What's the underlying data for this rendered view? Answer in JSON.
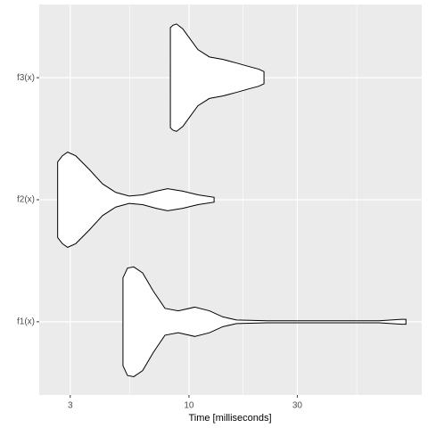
{
  "chart_data": {
    "type": "violin",
    "x_label": "Time [milliseconds]",
    "categories": [
      "f1(x)",
      "f2(x)",
      "f3(x)"
    ],
    "series": [
      {
        "name": "f1(x)",
        "x": [
          5.12,
          5.36,
          5.71,
          6.25,
          6.97,
          7.84,
          8.97,
          10.6,
          12.3,
          14.1,
          16.2,
          22.2,
          54.9,
          68.8,
          86.3,
          90.3
        ],
        "density": [
          0.36,
          0.44,
          0.45,
          0.4,
          0.25,
          0.11,
          0.09,
          0.12,
          0.09,
          0.04,
          0.015,
          0.008,
          0.008,
          0.008,
          0.02,
          0.02
        ]
      },
      {
        "name": "f2(x)",
        "x": [
          2.64,
          2.77,
          2.92,
          3.17,
          3.63,
          4.16,
          4.76,
          5.45,
          6.25,
          7.16,
          8.05,
          9.39,
          10.95,
          12.9
        ],
        "density": [
          0.31,
          0.36,
          0.39,
          0.36,
          0.25,
          0.13,
          0.06,
          0.03,
          0.04,
          0.07,
          0.09,
          0.07,
          0.04,
          0.02
        ]
      },
      {
        "name": "f3(x)",
        "x": [
          8.28,
          8.5,
          8.81,
          9.39,
          10.0,
          10.95,
          12.3,
          14.1,
          16.2,
          18.5,
          20.3,
          21.4
        ],
        "density": [
          0.41,
          0.43,
          0.44,
          0.4,
          0.33,
          0.23,
          0.17,
          0.15,
          0.12,
          0.09,
          0.07,
          0.05
        ]
      }
    ],
    "xlim": [
      2.19,
      106
    ],
    "xticks": [
      3,
      10,
      30
    ],
    "x_minor_ticks": [
      5.48,
      17.3,
      54.8
    ],
    "log_x": true,
    "grid": true,
    "panel_color": "#ebebeb",
    "fill_color": "#ffffff",
    "line_color": "#000000"
  }
}
